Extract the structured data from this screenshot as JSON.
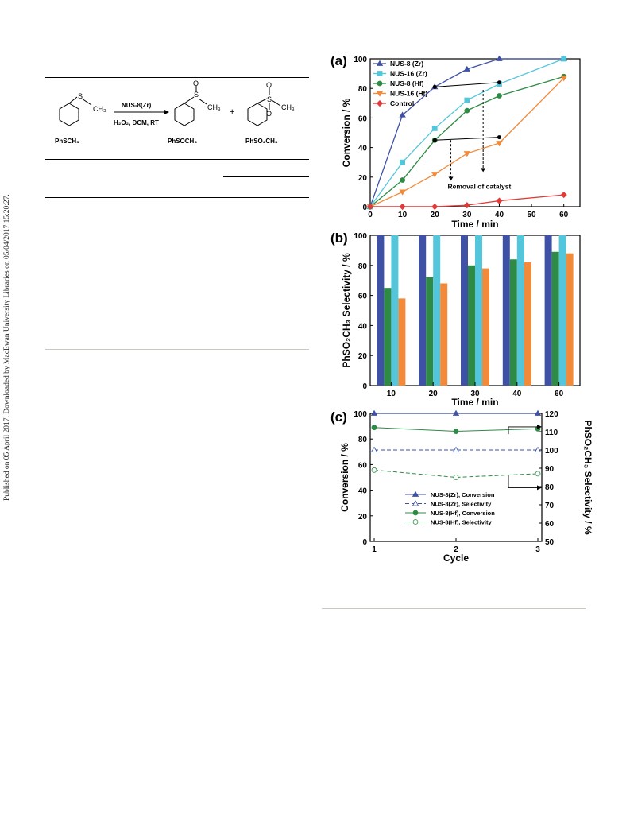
{
  "side_note": "Published on 05 April 2017. Downloaded by MacEwan University Libraries on 05/04/2017 15:20:27.",
  "scheme": {
    "catalyst": "NUS-8(Zr)",
    "conditions": "H₂O₂, DCM, RT",
    "reactant": "PhSCH₃",
    "product1": "PhSOCH₃",
    "product2": "PhSO₂CH₃",
    "plus": "+",
    "s": "S",
    "o": "O",
    "ch3": "CH₃"
  },
  "figure": {
    "colors": {
      "zr8": "#3f51a5",
      "zr16": "#54c6dc",
      "hf8": "#2e8b45",
      "hf16": "#f28a3a",
      "control": "#e03a3a"
    },
    "panel_a": {
      "label": "(a)",
      "xlabel": "Time / min",
      "ylabel": "Conversion / %",
      "annotation": "Removal of catalyst",
      "xticks": [
        "0",
        "10",
        "20",
        "30",
        "40",
        "50",
        "60"
      ],
      "yticks": [
        "0",
        "20",
        "40",
        "60",
        "80",
        "100"
      ]
    },
    "panel_b": {
      "label": "(b)",
      "xlabel": "Time / min",
      "ylabel": "PhSO₂CH₃ Selectivity / %",
      "yticks": [
        "0",
        "20",
        "40",
        "60",
        "80",
        "100"
      ]
    },
    "panel_c": {
      "label": "(c)",
      "xlabel": "Cycle",
      "ylabel_left": "Conversion / %",
      "ylabel_right": "PhSO₂CH₃ Selectivity / %",
      "xticks": [
        "1",
        "2",
        "3"
      ],
      "yticks_left": [
        "0",
        "20",
        "40",
        "60",
        "80",
        "100"
      ],
      "yticks_right": [
        "50",
        "60",
        "70",
        "80",
        "90",
        "100",
        "110",
        "120"
      ]
    }
  },
  "chart_data": [
    {
      "type": "line",
      "panel": "a",
      "xlabel": "Time / min",
      "ylabel": "Conversion / %",
      "xlim": [
        0,
        65
      ],
      "ylim": [
        0,
        100
      ],
      "legend_position": "top-left",
      "series": [
        {
          "name": "NUS-8 (Zr)",
          "x": [
            0,
            10,
            20,
            30,
            40,
            60
          ],
          "y": [
            0,
            62,
            81,
            93,
            100,
            100
          ]
        },
        {
          "name": "NUS-16 (Zr)",
          "x": [
            0,
            10,
            20,
            30,
            40,
            60
          ],
          "y": [
            0,
            30,
            53,
            72,
            83,
            100
          ]
        },
        {
          "name": "NUS-8 (Hf)",
          "x": [
            0,
            10,
            20,
            30,
            40,
            60
          ],
          "y": [
            0,
            18,
            45,
            65,
            75,
            88
          ]
        },
        {
          "name": "NUS-16 (Hf)",
          "x": [
            0,
            10,
            20,
            30,
            40,
            60
          ],
          "y": [
            0,
            10,
            22,
            36,
            43,
            87
          ]
        },
        {
          "name": "Control",
          "x": [
            0,
            10,
            20,
            30,
            40,
            60
          ],
          "y": [
            0,
            0,
            0,
            1,
            4,
            8
          ]
        }
      ],
      "leached_series": [
        {
          "x": [
            20,
            40
          ],
          "y": [
            81,
            84
          ]
        },
        {
          "x": [
            20,
            40
          ],
          "y": [
            45,
            47
          ]
        }
      ]
    },
    {
      "type": "bar",
      "panel": "b",
      "xlabel": "Time / min",
      "ylabel": "PhSO₂CH₃ Selectivity / %",
      "ylim": [
        0,
        100
      ],
      "categories": [
        "10",
        "20",
        "30",
        "40",
        "60"
      ],
      "series": [
        {
          "name": "NUS-8 (Zr)",
          "values": [
            100,
            100,
            100,
            100,
            100
          ]
        },
        {
          "name": "NUS-8 (Hf)",
          "values": [
            65,
            72,
            80,
            84,
            89
          ]
        },
        {
          "name": "NUS-16 (Zr)",
          "values": [
            100,
            100,
            100,
            100,
            100
          ]
        },
        {
          "name": "NUS-16 (Hf)",
          "values": [
            58,
            68,
            78,
            82,
            88
          ]
        }
      ]
    },
    {
      "type": "line",
      "panel": "c",
      "xlabel": "Cycle",
      "ylabel": "Conversion / %",
      "y2label": "PhSO₂CH₃ Selectivity / %",
      "ylim": [
        0,
        100
      ],
      "y2lim": [
        50,
        120
      ],
      "x": [
        1,
        2,
        3
      ],
      "legend_position": "bottom-center",
      "series": [
        {
          "name": "NUS-8(Zr), Conversion",
          "axis": "left",
          "y": [
            100,
            100,
            100
          ]
        },
        {
          "name": "NUS-8(Zr), Selectivity",
          "axis": "right",
          "y": [
            100,
            100,
            100
          ]
        },
        {
          "name": "NUS-8(Hf), Conversion",
          "axis": "left",
          "y": [
            89,
            86,
            88
          ]
        },
        {
          "name": "NUS-8(Hf), Selectivity",
          "axis": "right",
          "y": [
            89,
            85,
            87
          ]
        }
      ]
    }
  ]
}
